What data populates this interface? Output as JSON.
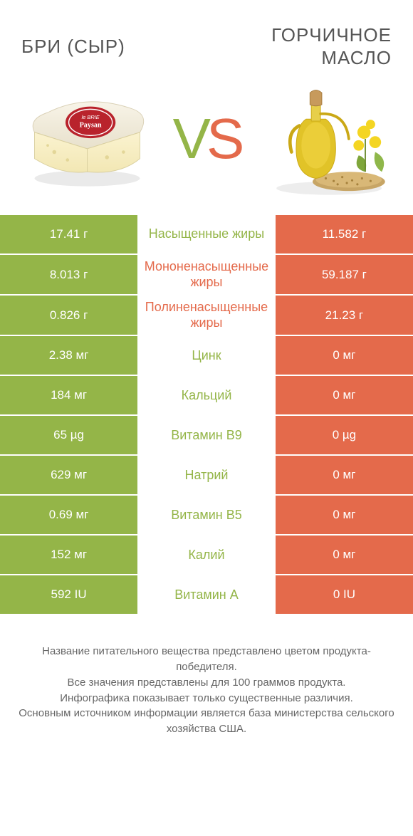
{
  "colors": {
    "green": "#94b548",
    "orange": "#e46a4b",
    "vs_v": "#94b548",
    "vs_s": "#e46a4b",
    "title": "#555555",
    "footer": "#666666"
  },
  "left_product": {
    "title": "БРИ (СЫР)"
  },
  "right_product": {
    "title": "ГОРЧИЧНОЕ МАСЛО"
  },
  "rows": [
    {
      "nutrient": "Насыщенные жиры",
      "left": "17.41 г",
      "right": "11.582 г",
      "winner": "left"
    },
    {
      "nutrient": "Мононенасыщенные жиры",
      "left": "8.013 г",
      "right": "59.187 г",
      "winner": "right"
    },
    {
      "nutrient": "Полиненасыщенные жиры",
      "left": "0.826 г",
      "right": "21.23 г",
      "winner": "right"
    },
    {
      "nutrient": "Цинк",
      "left": "2.38 мг",
      "right": "0 мг",
      "winner": "left"
    },
    {
      "nutrient": "Кальций",
      "left": "184 мг",
      "right": "0 мг",
      "winner": "left"
    },
    {
      "nutrient": "Витамин B9",
      "left": "65 µg",
      "right": "0 µg",
      "winner": "left"
    },
    {
      "nutrient": "Натрий",
      "left": "629 мг",
      "right": "0 мг",
      "winner": "left"
    },
    {
      "nutrient": "Витамин B5",
      "left": "0.69 мг",
      "right": "0 мг",
      "winner": "left"
    },
    {
      "nutrient": "Калий",
      "left": "152 мг",
      "right": "0 мг",
      "winner": "left"
    },
    {
      "nutrient": "Витамин A",
      "left": "592 IU",
      "right": "0 IU",
      "winner": "left"
    }
  ],
  "footer_text": "Название питательного вещества представлено цветом продукта-победителя.\nВсе значения представлены для 100 граммов продукта.\nИнфографика показывает только существенные различия.\nОсновным источником информации является база министерства сельского хозяйства США."
}
